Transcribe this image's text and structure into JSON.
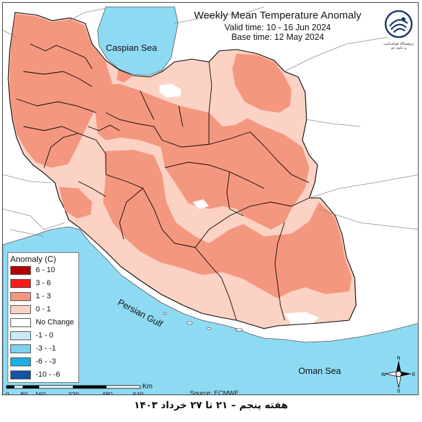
{
  "title": "Weekly Mean Temperature Anomaly",
  "valid_time": "Valid time: 10 - 16 Jun 2024",
  "base_time": "Base time: 12 May 2024",
  "logo": {
    "icon": "swirl-logo-icon",
    "caption_lines": [
      "پژوهشگاه هواشناسی",
      "و علوم جو"
    ]
  },
  "seas": {
    "caspian": "Caspian Sea",
    "persian_gulf": "Persian Gulf",
    "oman": "Oman Sea"
  },
  "legend": {
    "title": "Anomaly (C)",
    "items": [
      {
        "label": "6 - 10",
        "color": "#b30000"
      },
      {
        "label": "3 - 6",
        "color": "#ff1a1a"
      },
      {
        "label": "1 - 3",
        "color": "#f4977f"
      },
      {
        "label": "0 - 1",
        "color": "#fbd2c3"
      },
      {
        "label": "No Change",
        "color": "#ffffff"
      },
      {
        "label": "-1 - 0",
        "color": "#c9ebf8"
      },
      {
        "label": "-3 - -1",
        "color": "#7ed0ee"
      },
      {
        "label": "-6 - -3",
        "color": "#1cb0e6"
      },
      {
        "label": "-10 - -6",
        "color": "#1254a8"
      }
    ]
  },
  "scale": {
    "unit": "Km",
    "ticks": [
      "0",
      "80",
      "160",
      "320",
      "480",
      "640"
    ]
  },
  "source": "Source: ECMWF",
  "compass": {
    "n": "N",
    "s": "S",
    "e": "E",
    "w": "W"
  },
  "footer": "هفته پنجم – ۲۱ تا ۲۷ خرداد ۱۴۰۳",
  "colors": {
    "sea": "#8fdaf3",
    "land_outside": "#ffffff",
    "anomaly_0_1": "#fbd2c3",
    "anomaly_1_3": "#f4977f",
    "no_change": "#ffffff",
    "border": "#000000"
  }
}
